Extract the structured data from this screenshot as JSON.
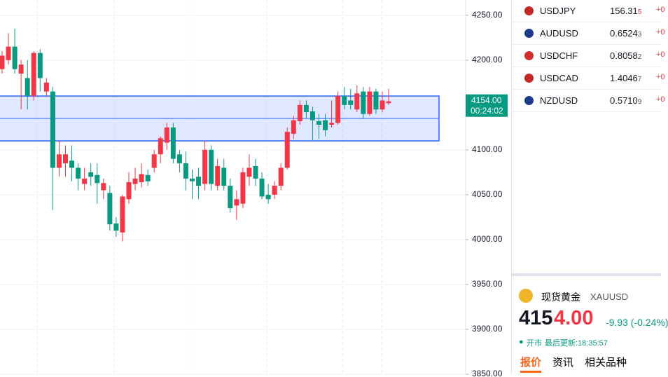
{
  "chart_data": {
    "type": "candlestick",
    "open": [
      4190,
      4200,
      4215,
      4185,
      4180,
      4160,
      4208,
      4165,
      4165,
      4080,
      4085,
      4088,
      4080,
      4062,
      4075,
      4072,
      4055,
      4052,
      4018,
      4008,
      4045,
      4062,
      4064,
      4072,
      4080,
      4095,
      4108,
      4125,
      4095,
      4085,
      4068,
      4070,
      4062,
      4100,
      4060,
      4080,
      4060,
      4038,
      4040,
      4070,
      4082,
      4068,
      4050,
      4050,
      4060,
      4080,
      4118,
      4132,
      4150,
      4143,
      4132,
      4133,
      4128,
      4130,
      4160,
      4155,
      4145,
      4165,
      4140,
      4165,
      4145,
      4152
    ],
    "high": [
      4210,
      4230,
      4235,
      4200,
      4200,
      4210,
      4212,
      4180,
      4170,
      4110,
      4105,
      4105,
      4085,
      4080,
      4085,
      4085,
      4068,
      4060,
      4025,
      4050,
      4075,
      4080,
      4085,
      4078,
      4100,
      4115,
      4130,
      4130,
      4100,
      4098,
      4078,
      4080,
      4110,
      4105,
      4090,
      4090,
      4068,
      4055,
      4080,
      4095,
      4090,
      4075,
      4062,
      4065,
      4085,
      4125,
      4138,
      4155,
      4155,
      4148,
      4140,
      4140,
      4155,
      4165,
      4170,
      4168,
      4172,
      4170,
      4170,
      4168,
      4165,
      4168
    ],
    "low": [
      4185,
      4195,
      4185,
      4145,
      4145,
      4155,
      4165,
      4160,
      4033,
      4070,
      4070,
      4065,
      4055,
      4055,
      4060,
      4040,
      4045,
      4010,
      4003,
      3998,
      4040,
      4055,
      4058,
      4060,
      4075,
      4085,
      4100,
      4085,
      4075,
      4055,
      4045,
      4045,
      4055,
      4055,
      4055,
      4055,
      4030,
      4022,
      4035,
      4060,
      4060,
      4045,
      4040,
      4045,
      4055,
      4078,
      4112,
      4128,
      4135,
      4110,
      4112,
      4115,
      4125,
      4128,
      4145,
      4145,
      4142,
      4135,
      4138,
      4140,
      4142,
      4150
    ],
    "close": [
      4205,
      4215,
      4190,
      4195,
      4160,
      4208,
      4180,
      4175,
      4080,
      4095,
      4095,
      4080,
      4068,
      4068,
      4070,
      4063,
      4063,
      4017,
      4010,
      4048,
      4064,
      4068,
      4073,
      4065,
      4095,
      4113,
      4125,
      4090,
      4085,
      4068,
      4065,
      4060,
      4100,
      4062,
      4082,
      4060,
      4035,
      4045,
      4075,
      4080,
      4068,
      4048,
      4045,
      4060,
      4080,
      4120,
      4133,
      4150,
      4142,
      4133,
      4128,
      4122,
      4130,
      4160,
      4150,
      4150,
      4163,
      4140,
      4165,
      4145,
      4155,
      4154
    ],
    "up_color": "#f23645",
    "down_color": "#089981",
    "band": [
      4110,
      4135,
      4160
    ],
    "band_color": "#2962ff",
    "ylim": [
      3850,
      4267
    ],
    "yticks": [
      {
        "value": 4250,
        "label": "4250.00"
      },
      {
        "value": 4200,
        "label": "4200.00"
      },
      {
        "value": 4100,
        "label": "4100.00"
      },
      {
        "value": 4050,
        "label": "4050.00"
      },
      {
        "value": 4000,
        "label": "4000.00"
      },
      {
        "value": 3950,
        "label": "3950.00"
      },
      {
        "value": 3900,
        "label": "3900.00"
      },
      {
        "value": 3850,
        "label": "3850.00"
      }
    ],
    "price_tag": {
      "value": 4154,
      "label": "4154.00"
    },
    "countdown": "00:24:02",
    "grid": true
  },
  "watchlist": [
    {
      "symbol": "USDJPY",
      "price": "156.31",
      "pip": "5",
      "change": "+0"
    },
    {
      "symbol": "AUDUSD",
      "price": "0.6524",
      "pip": "3",
      "change": "+0"
    },
    {
      "symbol": "USDCHF",
      "price": "0.8058",
      "pip": "2",
      "change": "+0"
    },
    {
      "symbol": "USDCAD",
      "price": "1.4046",
      "pip": "7",
      "change": "+0"
    },
    {
      "symbol": "NZDUSD",
      "price": "0.5710",
      "pip": "9",
      "change": "+0"
    }
  ],
  "quote": {
    "name": "现货黄金",
    "symbol": "XAUUSD",
    "price_main": "415",
    "price_tail": "4.00",
    "change": "-9.93 (-0.24%)",
    "status": "开市",
    "updated": "最后更新:18:35:57",
    "tabs": [
      "报价",
      "资讯",
      "相关品种"
    ]
  }
}
